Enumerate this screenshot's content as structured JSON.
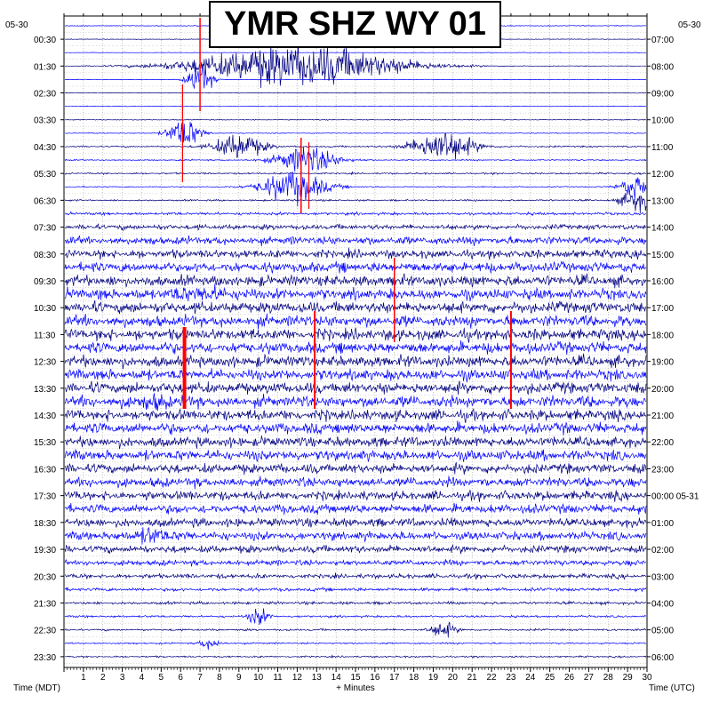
{
  "chart_data": {
    "type": "line",
    "title": "YMR SHZ WY 01",
    "xlabel": "+ Minutes",
    "left_axis_label": "Time (MDT)",
    "right_axis_label": "Time (UTC)",
    "left_date": "05-30",
    "right_date": "05-30",
    "x_ticks": [
      "1",
      "2",
      "3",
      "4",
      "5",
      "6",
      "7",
      "8",
      "9",
      "10",
      "11",
      "12",
      "13",
      "14",
      "15",
      "16",
      "17",
      "18",
      "19",
      "20",
      "21",
      "22",
      "23",
      "24",
      "25",
      "26",
      "27",
      "28",
      "29",
      "30"
    ],
    "xlim": [
      0,
      30
    ],
    "left_times": [
      "00:30",
      "01:30",
      "02:30",
      "03:30",
      "04:30",
      "05:30",
      "06:30",
      "07:30",
      "08:30",
      "09:30",
      "10:30",
      "11:30",
      "12:30",
      "13:30",
      "14:30",
      "15:30",
      "16:30",
      "17:30",
      "18:30",
      "19:30",
      "20:30",
      "21:30",
      "22:30",
      "23:30"
    ],
    "right_times": [
      "07:00",
      "08:00",
      "09:00",
      "10:00",
      "11:00",
      "12:00",
      "13:00",
      "14:00",
      "15:00",
      "16:00",
      "17:00",
      "18:00",
      "19:00",
      "20:00",
      "21:00",
      "22:00",
      "23:00",
      "00:00 05-31",
      "01:00",
      "02:00",
      "03:00",
      "04:00",
      "05:00",
      "06:00"
    ],
    "trace_count": 48,
    "trace_amplitude_levels": [
      0.15,
      0.12,
      0.1,
      0.12,
      0.1,
      0.12,
      0.12,
      0.15,
      0.15,
      0.3,
      0.25,
      0.3,
      0.2,
      0.3,
      0.5,
      0.9,
      1.4,
      1.5,
      1.8,
      1.9,
      1.9,
      2.0,
      2.0,
      2.0,
      2.0,
      2.0,
      1.9,
      2.0,
      2.0,
      1.9,
      1.9,
      1.8,
      1.8,
      1.7,
      1.7,
      1.6,
      1.6,
      1.5,
      1.5,
      1.3,
      1.0,
      0.8,
      0.6,
      0.5,
      0.4,
      0.35,
      0.3,
      0.3
    ],
    "trace_colors": [
      "#0000ff",
      "#000080"
    ],
    "event_marker_color": "#ff0000",
    "grid": true
  }
}
